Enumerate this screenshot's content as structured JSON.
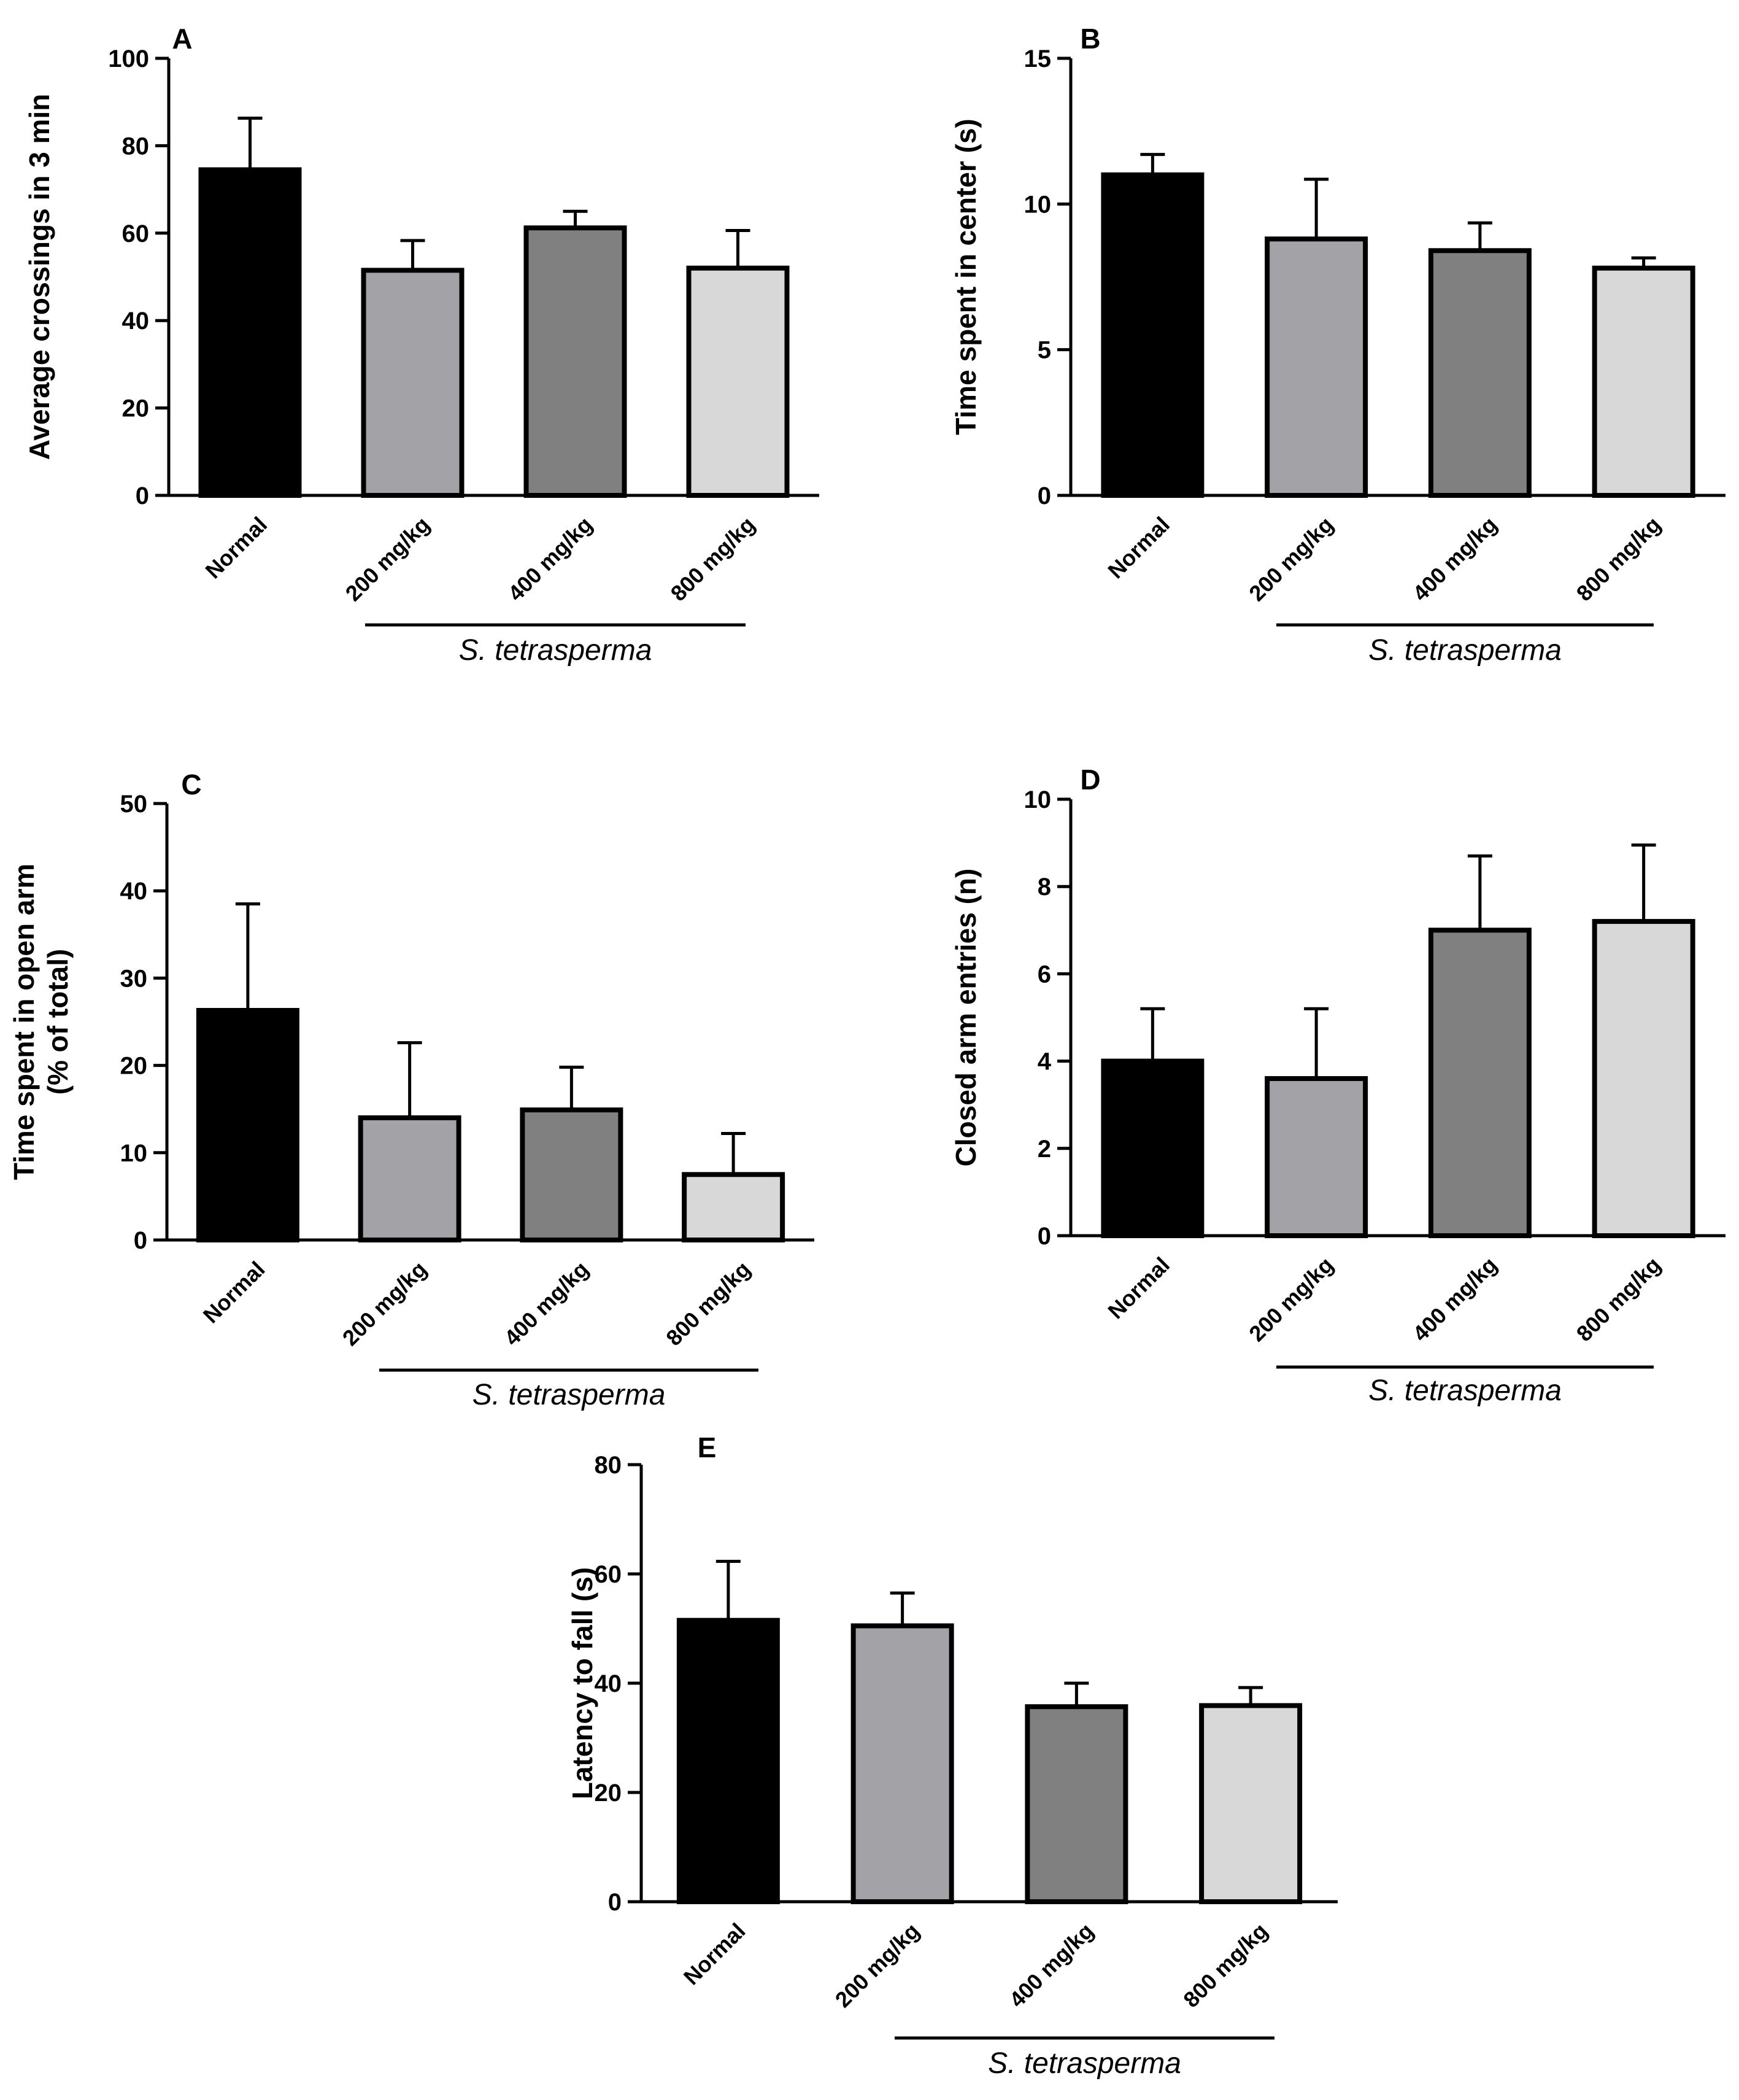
{
  "chart_data": [
    {
      "type": "bar",
      "panel": "A",
      "categories": [
        "Normal",
        "200 mg/kg",
        "400 mg/kg",
        "800 mg/kg"
      ],
      "values": [
        74.5,
        51.5,
        61.2,
        52.0
      ],
      "errors": [
        11.8,
        6.8,
        3.8,
        8.6
      ],
      "ylabel": "Average crossings in 3 min",
      "ylim": [
        0,
        100
      ],
      "yticks": [
        0,
        20,
        40,
        60,
        80,
        100
      ],
      "group_label": "S. tetrasperma",
      "bar_colors": [
        "#000000",
        "#a3a3a7",
        "#808080",
        "#d8d8d8"
      ]
    },
    {
      "type": "bar",
      "panel": "B",
      "categories": [
        "Normal",
        "200 mg/kg",
        "400 mg/kg",
        "800 mg/kg"
      ],
      "values": [
        11.0,
        8.8,
        8.4,
        7.8
      ],
      "errors": [
        0.7,
        2.05,
        0.95,
        0.35
      ],
      "ylabel": "Time spent in center (s)",
      "ylim": [
        0,
        15
      ],
      "yticks": [
        0,
        5,
        10,
        15
      ],
      "group_label": "S. tetrasperma",
      "bar_colors": [
        "#000000",
        "#a3a3a7",
        "#808080",
        "#d8d8d8"
      ]
    },
    {
      "type": "bar",
      "panel": "C",
      "categories": [
        "Normal",
        "200 mg/kg",
        "400 mg/kg",
        "800 mg/kg"
      ],
      "values": [
        26.3,
        14.0,
        14.9,
        7.5
      ],
      "errors": [
        12.2,
        8.6,
        4.9,
        4.7
      ],
      "ylabel": [
        "Time spent in open arm",
        "(% of total)"
      ],
      "ylim": [
        0,
        50
      ],
      "yticks": [
        0,
        10,
        20,
        30,
        40,
        50
      ],
      "group_label": "S. tetrasperma",
      "bar_colors": [
        "#000000",
        "#a3a3a7",
        "#808080",
        "#d8d8d8"
      ]
    },
    {
      "type": "bar",
      "panel": "D",
      "categories": [
        "Normal",
        "200 mg/kg",
        "400 mg/kg",
        "800 mg/kg"
      ],
      "values": [
        4.0,
        3.6,
        7.0,
        7.2
      ],
      "errors": [
        1.2,
        1.6,
        1.7,
        1.75
      ],
      "ylabel": "Closed arm entries (n)",
      "ylim": [
        0,
        10
      ],
      "yticks": [
        0,
        2,
        4,
        6,
        8,
        10
      ],
      "group_label": "S. tetrasperma",
      "bar_colors": [
        "#000000",
        "#a3a3a7",
        "#808080",
        "#d8d8d8"
      ]
    },
    {
      "type": "bar",
      "panel": "E",
      "categories": [
        "Normal",
        "200 mg/kg",
        "400 mg/kg",
        "800 mg/kg"
      ],
      "values": [
        51.5,
        50.5,
        35.7,
        35.9
      ],
      "errors": [
        10.8,
        6.0,
        4.3,
        3.3
      ],
      "ylabel": "Latency to fall (s)",
      "ylim": [
        0,
        80
      ],
      "yticks": [
        0,
        20,
        40,
        60,
        80
      ],
      "group_label": "S. tetrasperma",
      "bar_colors": [
        "#000000",
        "#a3a3a7",
        "#808080",
        "#d8d8d8"
      ]
    }
  ]
}
